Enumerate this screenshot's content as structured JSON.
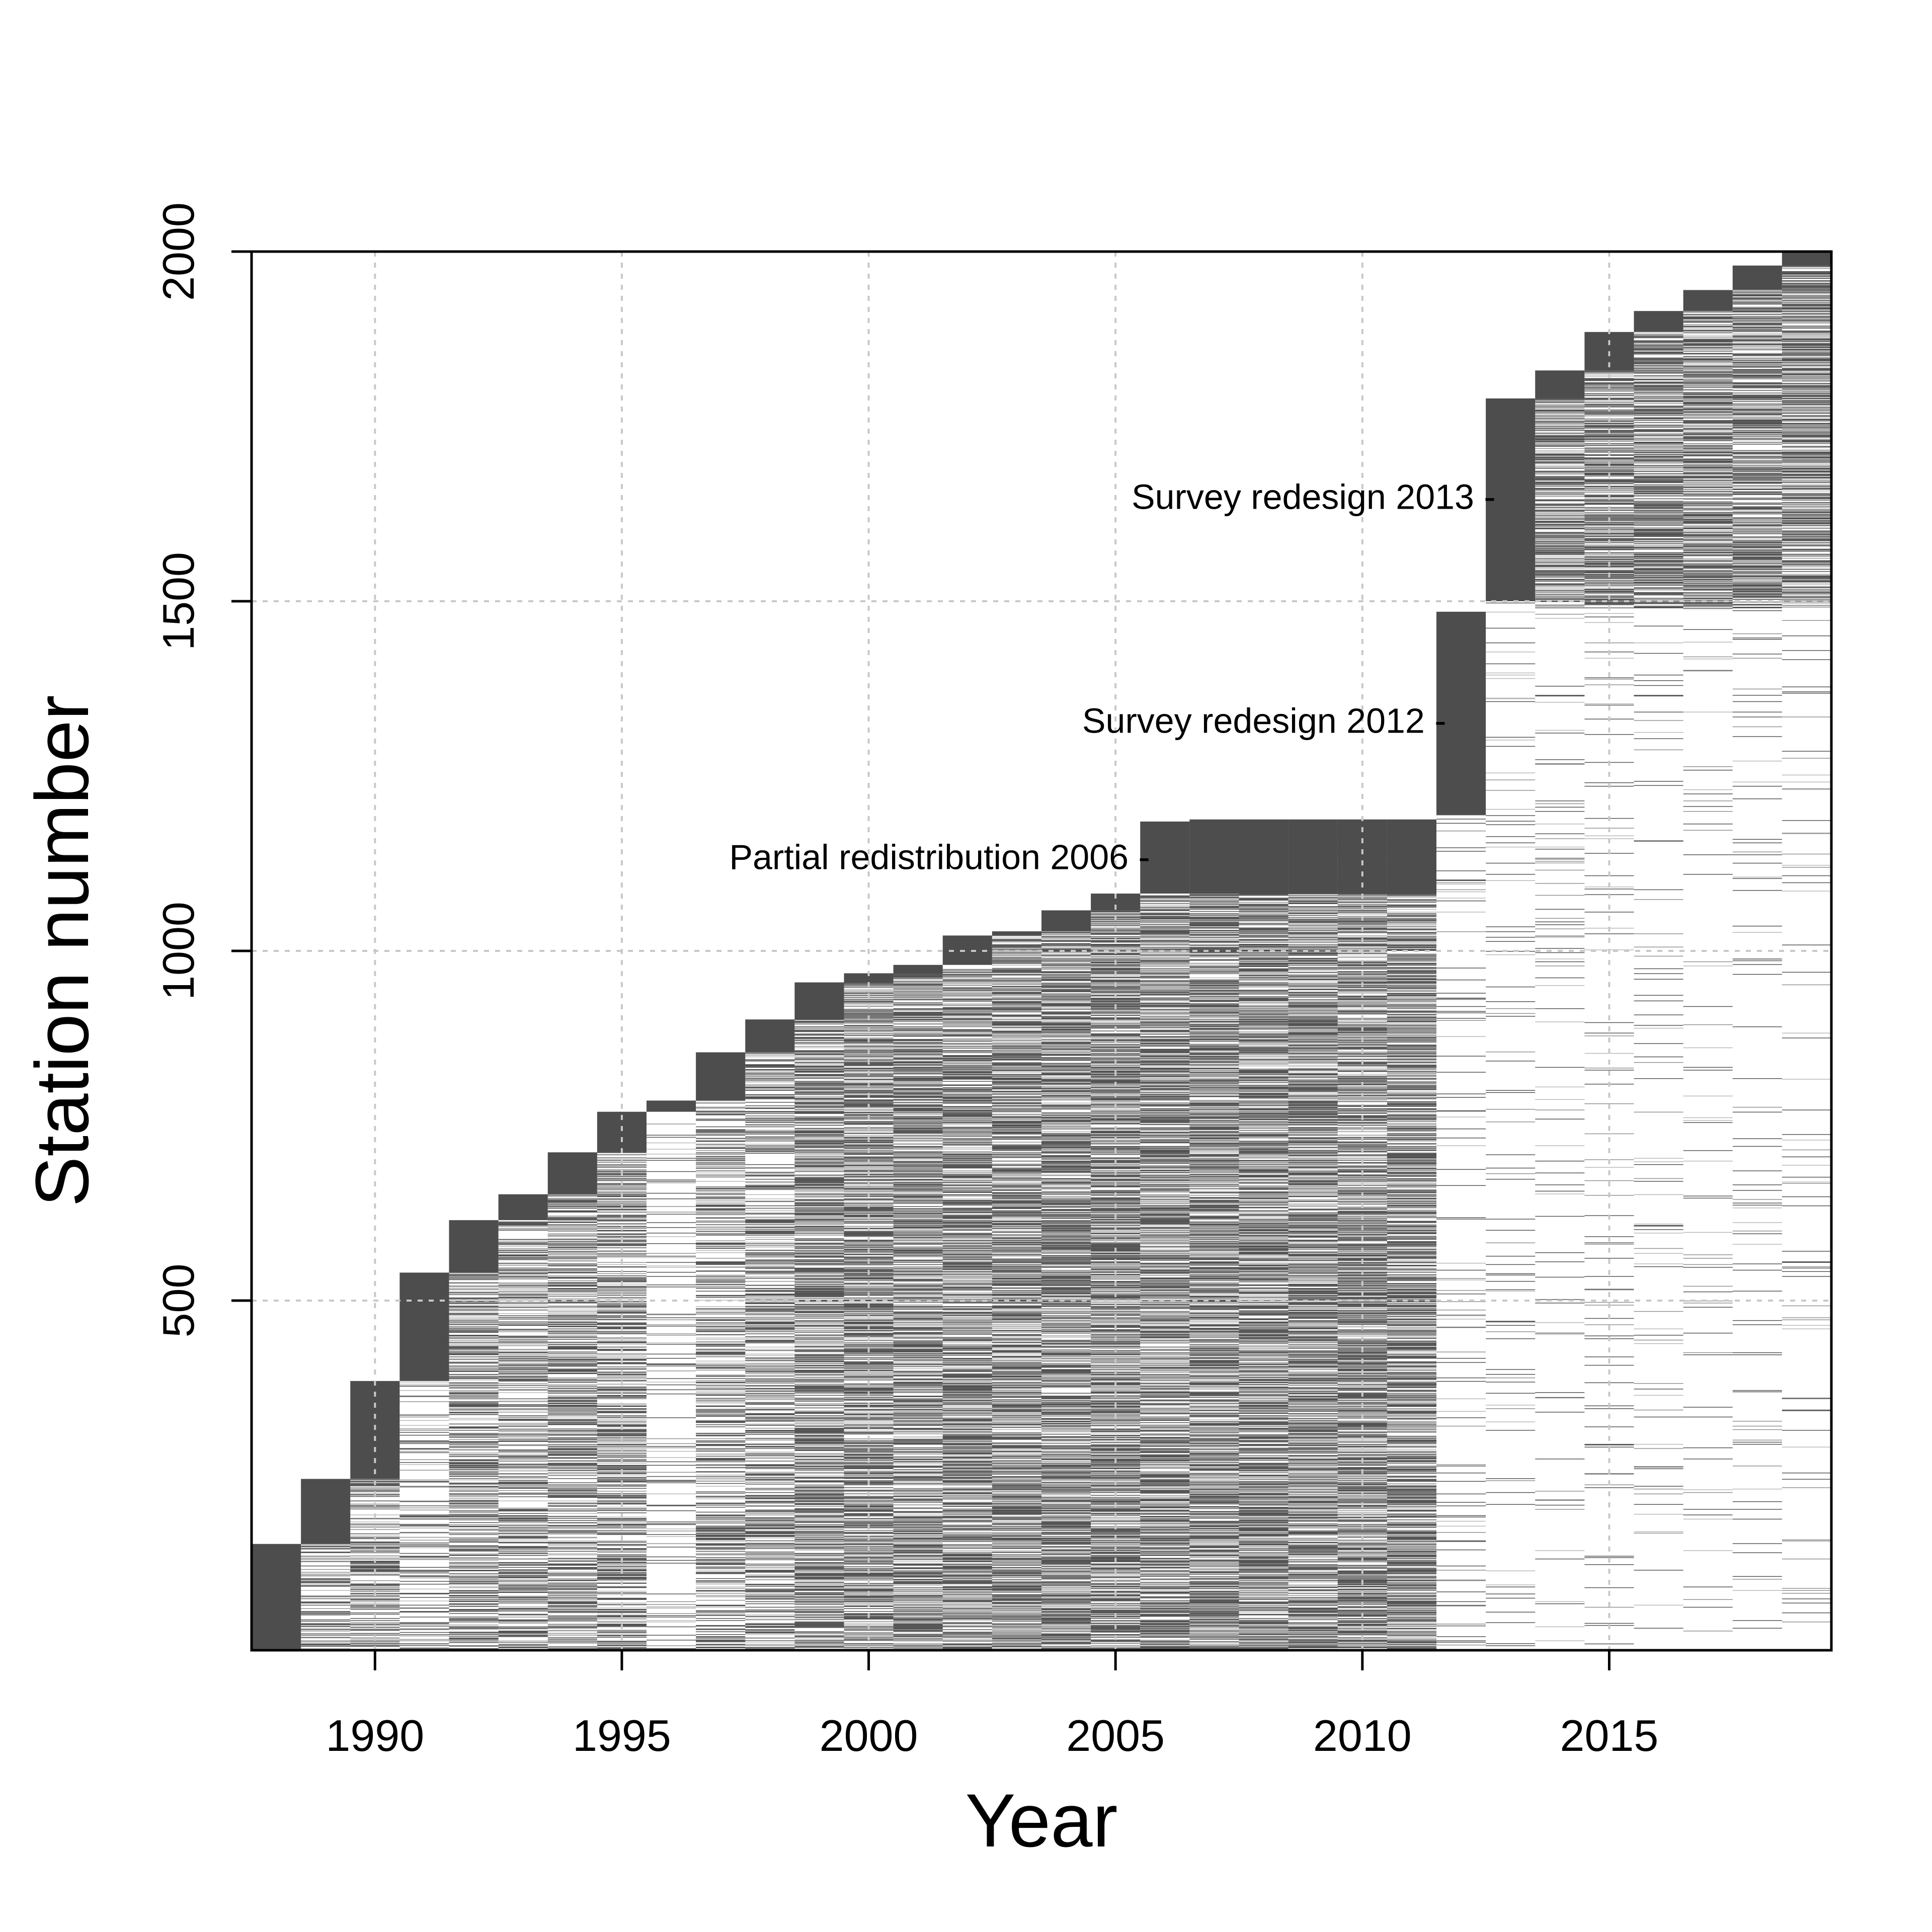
{
  "chart_data": {
    "type": "heatmap",
    "title": "",
    "xlabel": "Year",
    "ylabel": "Station number",
    "xlim": [
      1987.5,
      2019.5
    ],
    "ylim": [
      0,
      2000
    ],
    "xticks": [
      1990,
      1995,
      2000,
      2005,
      2010,
      2015
    ],
    "xtick_labels": [
      "1990",
      "1995",
      "2000",
      "2005",
      "2010",
      "2015"
    ],
    "yticks": [
      500,
      1000,
      1500,
      2000
    ],
    "ytick_labels": [
      "500",
      "1000",
      "1500",
      "2000"
    ],
    "grid": true,
    "colors": {
      "sampled": "#4d4d4d",
      "grid": "#c8c8c8",
      "axis": "#000000"
    },
    "years": [
      1988,
      1989,
      1990,
      1991,
      1992,
      1993,
      1994,
      1995,
      1996,
      1997,
      1998,
      1999,
      2000,
      2001,
      2002,
      2003,
      2004,
      2005,
      2006,
      2007,
      2008,
      2009,
      2010,
      2011,
      2012,
      2013,
      2014,
      2015,
      2016,
      2017,
      2018,
      2019
    ],
    "new_station_blocks": [
      {
        "year": 1988,
        "from": 0,
        "to": 152
      },
      {
        "year": 1989,
        "from": 152,
        "to": 245
      },
      {
        "year": 1990,
        "from": 245,
        "to": 385
      },
      {
        "year": 1991,
        "from": 385,
        "to": 540
      },
      {
        "year": 1992,
        "from": 540,
        "to": 615
      },
      {
        "year": 1993,
        "from": 615,
        "to": 652
      },
      {
        "year": 1994,
        "from": 652,
        "to": 712
      },
      {
        "year": 1995,
        "from": 712,
        "to": 770
      },
      {
        "year": 1996,
        "from": 770,
        "to": 786
      },
      {
        "year": 1997,
        "from": 786,
        "to": 855
      },
      {
        "year": 1998,
        "from": 855,
        "to": 902
      },
      {
        "year": 1999,
        "from": 902,
        "to": 955
      },
      {
        "year": 2000,
        "from": 955,
        "to": 968
      },
      {
        "year": 2001,
        "from": 968,
        "to": 980
      },
      {
        "year": 2002,
        "from": 980,
        "to": 1022
      },
      {
        "year": 2003,
        "from": 1022,
        "to": 1028
      },
      {
        "year": 2004,
        "from": 1028,
        "to": 1058
      },
      {
        "year": 2005,
        "from": 1058,
        "to": 1082
      },
      {
        "year": 2006,
        "from": 1082,
        "to": 1185
      },
      {
        "year": 2012,
        "from": 1195,
        "to": 1485
      },
      {
        "year": 2013,
        "from": 1500,
        "to": 1790
      },
      {
        "year": 2014,
        "from": 1790,
        "to": 1830
      },
      {
        "year": 2015,
        "from": 1830,
        "to": 1885
      },
      {
        "year": 2016,
        "from": 1885,
        "to": 1915
      },
      {
        "year": 2017,
        "from": 1915,
        "to": 1945
      },
      {
        "year": 2018,
        "from": 1945,
        "to": 1980
      },
      {
        "year": 2019,
        "from": 1980,
        "to": 2000
      }
    ],
    "resampled_density": [
      {
        "year": 1988,
        "to": 0,
        "density": 0.0
      },
      {
        "year": 1989,
        "to": 152,
        "density": 0.45
      },
      {
        "year": 1990,
        "to": 245,
        "density": 0.5
      },
      {
        "year": 1991,
        "to": 385,
        "density": 0.3
      },
      {
        "year": 1992,
        "to": 540,
        "density": 0.6
      },
      {
        "year": 1993,
        "to": 615,
        "density": 0.55
      },
      {
        "year": 1994,
        "to": 652,
        "density": 0.6
      },
      {
        "year": 1995,
        "to": 712,
        "density": 0.55
      },
      {
        "year": 1996,
        "to": 770,
        "density": 0.12
      },
      {
        "year": 1997,
        "to": 786,
        "density": 0.5
      },
      {
        "year": 1998,
        "to": 855,
        "density": 0.55
      },
      {
        "year": 1999,
        "to": 902,
        "density": 0.7
      },
      {
        "year": 2000,
        "to": 955,
        "density": 0.75
      },
      {
        "year": 2001,
        "to": 968,
        "density": 0.75
      },
      {
        "year": 2002,
        "to": 980,
        "density": 0.75
      },
      {
        "year": 2003,
        "to": 1022,
        "density": 0.75
      },
      {
        "year": 2004,
        "to": 1028,
        "density": 0.75
      },
      {
        "year": 2005,
        "to": 1058,
        "density": 0.75
      },
      {
        "year": 2006,
        "to": 1082,
        "density": 0.75
      },
      {
        "year": 2007,
        "to": 1185,
        "density": 0.75
      },
      {
        "year": 2008,
        "to": 1185,
        "density": 0.75
      },
      {
        "year": 2009,
        "to": 1185,
        "density": 0.75
      },
      {
        "year": 2010,
        "to": 1185,
        "density": 0.75
      },
      {
        "year": 2011,
        "to": 1185,
        "density": 0.75
      },
      {
        "year": 2012,
        "to": 1195,
        "density": 0.08
      },
      {
        "year": 2013,
        "to": 1500,
        "density": 0.06
      },
      {
        "year": 2014,
        "to": 1790,
        "density": 0.05
      },
      {
        "year": 2015,
        "to": 1830,
        "density": 0.05
      },
      {
        "year": 2016,
        "to": 1885,
        "density": 0.05
      },
      {
        "year": 2017,
        "to": 1915,
        "density": 0.05
      },
      {
        "year": 2018,
        "to": 1945,
        "density": 0.05
      },
      {
        "year": 2019,
        "to": 1980,
        "density": 0.05
      }
    ],
    "post_2013_density": 0.7,
    "annotations": [
      {
        "text": "Survey redesign 2013 -",
        "x": 2012.7,
        "y": 1650
      },
      {
        "text": "Survey redesign 2012 -",
        "x": 2011.7,
        "y": 1330
      },
      {
        "text": "Partial redistribution 2006 -",
        "x": 2005.7,
        "y": 1135
      }
    ]
  }
}
